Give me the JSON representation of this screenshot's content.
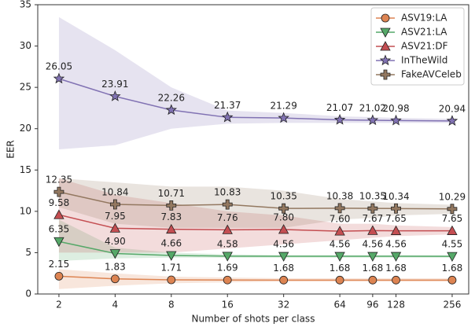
{
  "chart_data": {
    "type": "line",
    "xlabel": "Number of shots per class",
    "ylabel": "EER",
    "xscale": "log",
    "x": [
      2,
      4,
      8,
      16,
      32,
      64,
      96,
      128,
      256
    ],
    "xlim": [
      1.54,
      314
    ],
    "xticks": [
      2,
      4,
      8,
      16,
      32,
      64,
      96,
      128,
      256
    ],
    "ylim": [
      0,
      35
    ],
    "yticks": [
      0,
      5,
      10,
      15,
      20,
      25,
      30,
      35
    ],
    "grid": false,
    "legend": "upper right",
    "series": [
      {
        "name": "ASV19:LA",
        "color": "#dd8452",
        "marker": "circle",
        "values": [
          2.15,
          1.83,
          1.71,
          1.69,
          1.68,
          1.68,
          1.68,
          1.68,
          1.68
        ],
        "value_labels": [
          "2.15",
          "1.83",
          "1.71",
          "1.69",
          "1.68",
          "1.68",
          "1.68",
          "1.68",
          "1.68"
        ],
        "lower": [
          0.6,
          1.0,
          1.3,
          1.4,
          1.5,
          1.5,
          1.5,
          1.5,
          1.5
        ],
        "upper": [
          3.0,
          2.5,
          2.1,
          2.0,
          1.9,
          1.9,
          1.9,
          1.9,
          1.9
        ]
      },
      {
        "name": "ASV21:LA",
        "color": "#55a868",
        "marker": "triangle-down",
        "values": [
          6.35,
          4.9,
          4.66,
          4.58,
          4.56,
          4.56,
          4.56,
          4.56,
          4.55
        ],
        "value_labels": [
          "6.35",
          "4.90",
          "4.66",
          "4.58",
          "4.56",
          "4.56",
          "4.56",
          "4.56",
          "4.55"
        ],
        "lower": [
          4.0,
          4.3,
          4.4,
          4.4,
          4.4,
          4.4,
          4.4,
          4.4,
          4.4
        ],
        "upper": [
          9.0,
          5.6,
          5.0,
          4.8,
          4.7,
          4.7,
          4.7,
          4.7,
          4.7
        ]
      },
      {
        "name": "ASV21:DF",
        "color": "#c44e52",
        "marker": "triangle-up",
        "values": [
          9.58,
          7.95,
          7.83,
          7.76,
          7.8,
          7.6,
          7.67,
          7.65,
          7.65
        ],
        "value_labels": [
          "9.58",
          "7.95",
          "7.83",
          "7.76",
          "7.80",
          "7.60",
          "7.67",
          "7.65",
          "7.65"
        ],
        "lower": [
          5,
          5,
          5,
          5.5,
          6,
          6.5,
          6.8,
          7,
          7.2
        ],
        "upper": [
          14,
          12,
          11,
          10,
          9.5,
          8.5,
          8.5,
          8.3,
          8.1
        ]
      },
      {
        "name": "InTheWild",
        "color": "#8172b3",
        "marker": "star",
        "values": [
          26.05,
          23.91,
          22.26,
          21.37,
          21.29,
          21.07,
          21.02,
          20.98,
          20.94
        ],
        "value_labels": [
          "26.05",
          "23.91",
          "22.26",
          "21.37",
          "21.29",
          "21.07",
          "21.02",
          "20.98",
          "20.94"
        ],
        "lower": [
          17.5,
          18,
          20,
          20.6,
          20.7,
          20.7,
          20.7,
          20.7,
          20.7
        ],
        "upper": [
          33.5,
          29.5,
          25,
          22.2,
          21.9,
          21.5,
          21.4,
          21.3,
          21.2
        ]
      },
      {
        "name": "FakeAVCeleb",
        "color": "#937860",
        "marker": "plus",
        "values": [
          12.35,
          10.84,
          10.71,
          10.83,
          10.35,
          10.38,
          10.35,
          10.34,
          10.29
        ],
        "value_labels": [
          "12.35",
          "10.84",
          "10.71",
          "10.83",
          "10.35",
          "10.38",
          "10.35",
          "10.34",
          "10.29"
        ],
        "lower": [
          10.5,
          8.5,
          8,
          8,
          8,
          9,
          9.2,
          9.5,
          9.7
        ],
        "upper": [
          14,
          13.5,
          13,
          13,
          12.5,
          11.5,
          11.2,
          11,
          10.8
        ]
      }
    ]
  }
}
